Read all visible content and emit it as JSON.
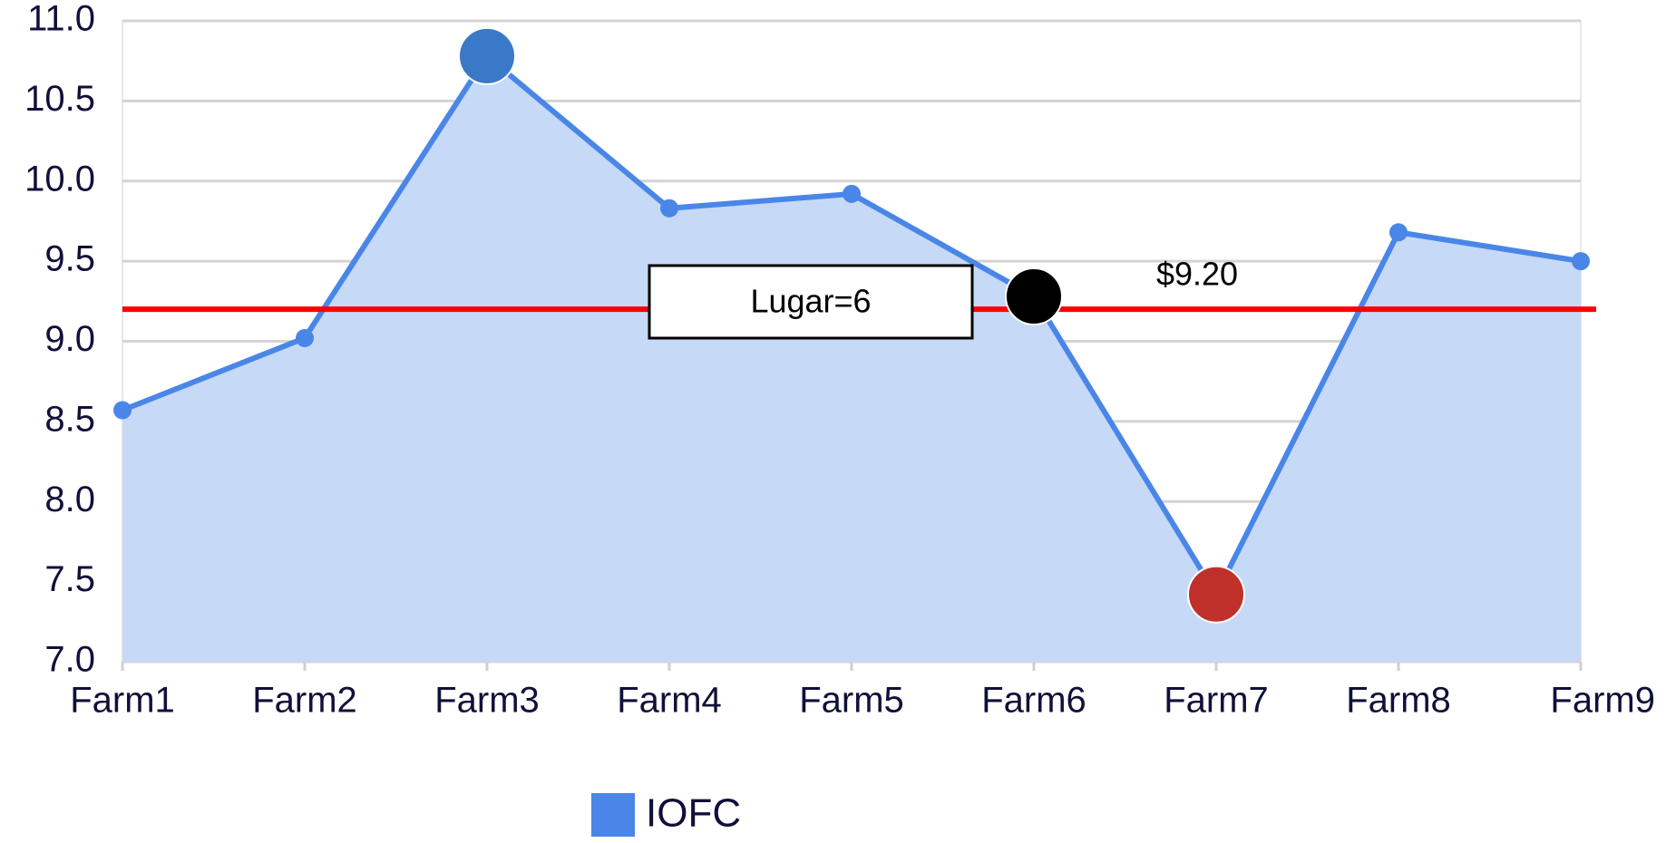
{
  "chart_data": {
    "type": "area",
    "categories": [
      "Farm1",
      "Farm2",
      "Farm3",
      "Farm4",
      "Farm5",
      "Farm6",
      "Farm7",
      "Farm8",
      "Farm9"
    ],
    "series": [
      {
        "name": "IOFC",
        "color": "#4a86e8",
        "fill": "#c6d9f6",
        "values": [
          8.57,
          9.02,
          10.78,
          9.83,
          9.92,
          9.28,
          7.42,
          9.68,
          9.5
        ]
      }
    ],
    "highlight_colors": [
      null,
      null,
      "#3a78c8",
      null,
      null,
      "#000000",
      "#c0302a",
      null,
      null
    ],
    "ylim": [
      7,
      11
    ],
    "yticks": [
      {
        "value": 7,
        "label": "7.0"
      },
      7.5,
      {
        "value": 8,
        "label": "8.0"
      },
      8.5,
      {
        "value": 9,
        "label": "9.0"
      },
      9.5,
      {
        "value": 10,
        "label": "10.0"
      },
      10.5,
      {
        "value": 11,
        "label": "11.0"
      }
    ],
    "grid": true,
    "reference_line": {
      "value": 9.2,
      "label": "$9.20",
      "color": "#ff0000"
    },
    "annotation": "Lugar=6",
    "legend": "bottom"
  }
}
